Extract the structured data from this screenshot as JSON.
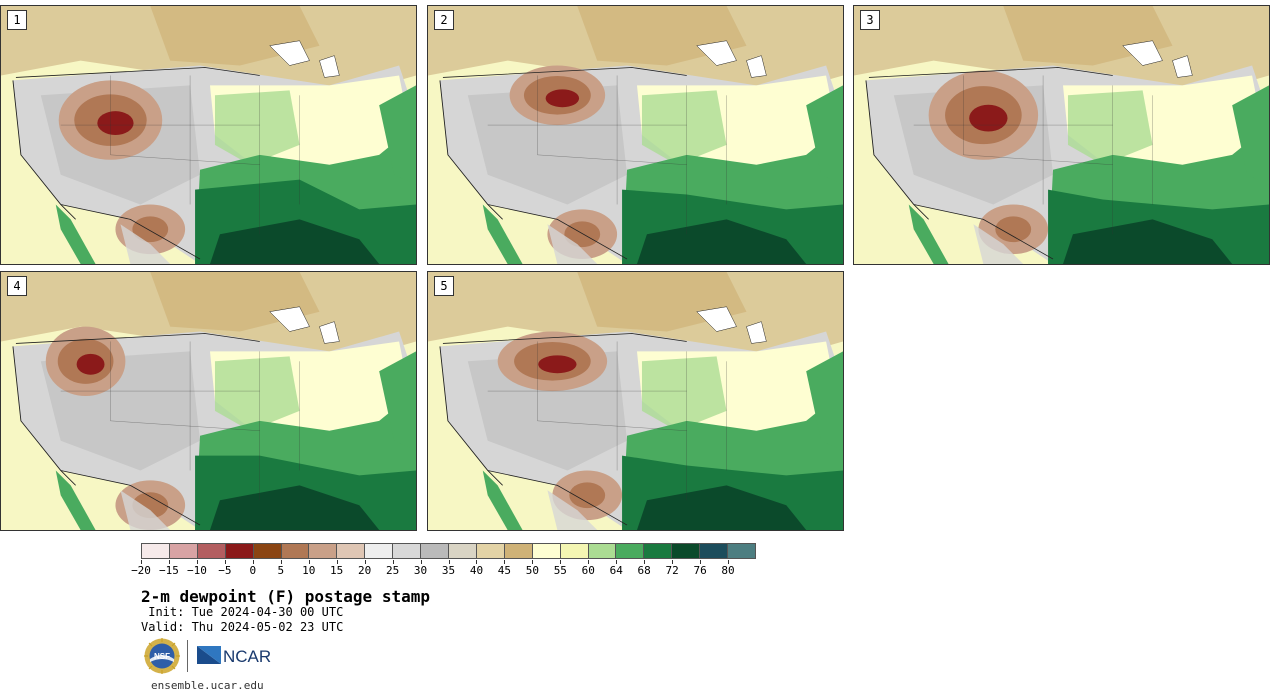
{
  "panels": [
    {
      "label": "1"
    },
    {
      "label": "2"
    },
    {
      "label": "3"
    },
    {
      "label": "4"
    },
    {
      "label": "5"
    }
  ],
  "colorbar": {
    "colors": [
      "#f6eaea",
      "#d8a3a4",
      "#b35e60",
      "#8b1a1a",
      "#8b4513",
      "#b07855",
      "#c9a088",
      "#dfc6b4",
      "#eeeeee",
      "#d8d8d8",
      "#bababa",
      "#d9d4c4",
      "#e3d3a6",
      "#cfb277",
      "#fefed2",
      "#f4f6b3",
      "#abdc93",
      "#4aab5f",
      "#1a7a40",
      "#0b4a2b",
      "#1c4d5c",
      "#4d7e81"
    ],
    "tick_labels": [
      "−20",
      "−15",
      "−10",
      "−5",
      "0",
      "5",
      "10",
      "15",
      "20",
      "25",
      "30",
      "35",
      "40",
      "45",
      "50",
      "55",
      "60",
      "64",
      "68",
      "72",
      "76",
      "80"
    ]
  },
  "title": "2-m dewpoint (F) postage stamp",
  "init": " Init: Tue 2024-04-30 00 UTC",
  "valid": "Valid: Thu 2024-05-02 23 UTC",
  "logos": {
    "nsf": "NSF",
    "ncar": "NCAR"
  },
  "url": "ensemble.ucar.edu"
}
